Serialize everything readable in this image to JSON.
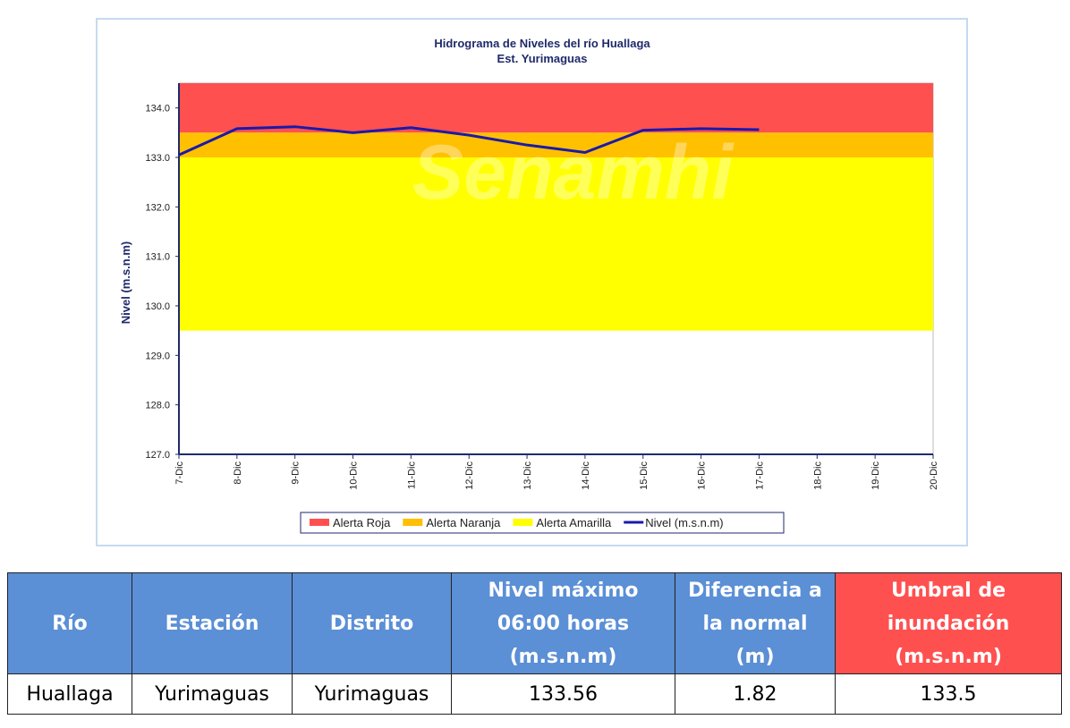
{
  "chart_data": {
    "type": "line",
    "title": "Hidrograma de Niveles del río Huallaga",
    "subtitle": "Est. Yurimaguas",
    "watermark": "Senamhi",
    "y_label": "Nivel (m.s.n.m)",
    "categories": [
      "7-Dic",
      "8-Dic",
      "9-Dic",
      "10-Dic",
      "11-Dic",
      "12-Dic",
      "13-Dic",
      "14-Dic",
      "15-Dic",
      "16-Dic",
      "17-Dic",
      "18-Dic",
      "19-Dic",
      "20-Dic"
    ],
    "bands": [
      {
        "name": "Alerta Roja",
        "color": "#ff5050",
        "from": 133.5,
        "to": 134.5
      },
      {
        "name": "Alerta Naranja",
        "color": "#ffc000",
        "from": 133,
        "to": 133.5
      },
      {
        "name": "Alerta Amarilla",
        "color": "#ffff00",
        "from": 129.5,
        "to": 133
      }
    ],
    "series": [
      {
        "name": "Nivel (m.s.n.m)",
        "color": "#1a1aa8",
        "values": [
          133.05,
          133.58,
          133.62,
          133.5,
          133.6,
          133.45,
          133.25,
          133.1,
          133.55,
          133.58,
          133.56,
          null,
          null,
          null
        ]
      }
    ],
    "ylim": [
      127,
      134.5
    ],
    "yticks": [
      {
        "value": 127,
        "label": "127.0"
      },
      {
        "value": 128,
        "label": "128.0"
      },
      {
        "value": 129,
        "label": "129.0"
      },
      {
        "value": 130,
        "label": "130.0"
      },
      {
        "value": 131,
        "label": "131.0"
      },
      {
        "value": 132,
        "label": "132.0"
      },
      {
        "value": 133,
        "label": "133.0"
      },
      {
        "value": 134,
        "label": "134.0"
      }
    ],
    "grid": false,
    "legend": "bottom"
  },
  "table": {
    "header": [
      "Río",
      "Estación",
      "Distrito",
      "Nivel máximo 06:00 horas (m.s.n.m)",
      "Diferencia a la normal (m)",
      "Umbral de inundación (m.s.n.m)"
    ],
    "rows": [
      [
        "Huallaga",
        "Yurimaguas",
        "Yurimaguas",
        133.56,
        1.82,
        133.5
      ]
    ]
  }
}
